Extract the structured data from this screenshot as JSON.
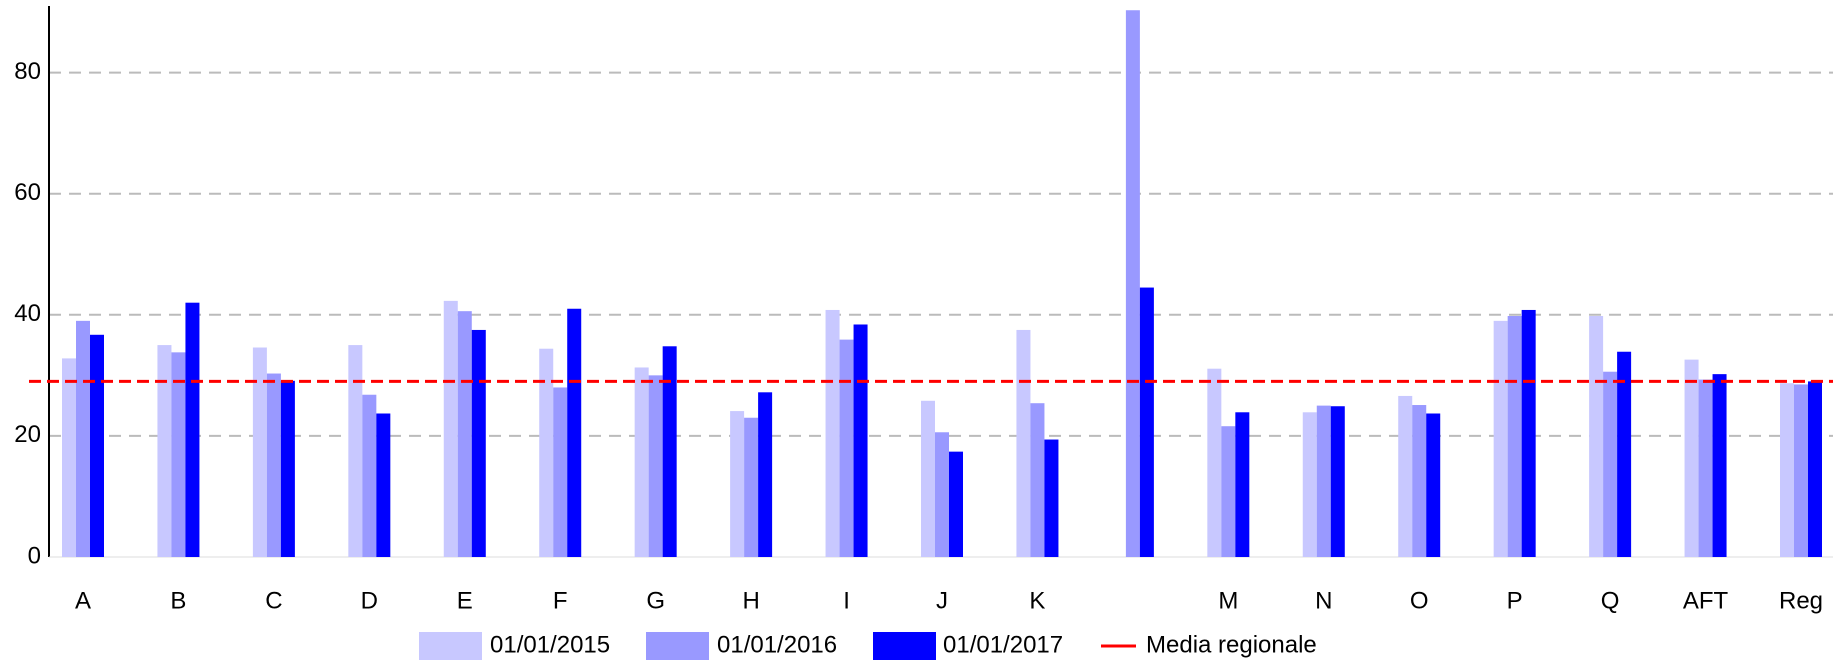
{
  "chart_data": {
    "type": "bar",
    "categories": [
      "A",
      "B",
      "C",
      "D",
      "E",
      "F",
      "G",
      "H",
      "I",
      "J",
      "K",
      null,
      "M",
      "N",
      "O",
      "P",
      "Q",
      "AFT",
      "Reg"
    ],
    "series": [
      {
        "name": "01/01/2015",
        "color": "#c8c8ff",
        "values": [
          32.8,
          35,
          34.6,
          35,
          42.3,
          34.4,
          31.3,
          24.1,
          40.8,
          25.8,
          37.5,
          null,
          31.1,
          23.9,
          26.6,
          39,
          39.8,
          32.6,
          28.7
        ]
      },
      {
        "name": "01/01/2016",
        "color": "#9999ff",
        "values": [
          39,
          33.8,
          30.3,
          26.8,
          40.6,
          28,
          30,
          23,
          35.9,
          20.6,
          25.4,
          90.3,
          21.6,
          25,
          25.1,
          39.8,
          30.6,
          29.3,
          28.5
        ]
      },
      {
        "name": "01/01/2017",
        "color": "#0000ff",
        "values": [
          36.7,
          42,
          29.1,
          23.7,
          37.5,
          41,
          34.8,
          27.2,
          38.4,
          17.4,
          19.4,
          44.5,
          23.9,
          24.9,
          23.7,
          40.8,
          33.9,
          30.2,
          29
        ]
      }
    ],
    "reference_line": {
      "name": "Media regionale",
      "value": 29,
      "color": "#ff0000"
    },
    "ylim": [
      0,
      91
    ],
    "yticks": [
      0,
      20,
      40,
      60,
      80
    ],
    "grid": true
  }
}
